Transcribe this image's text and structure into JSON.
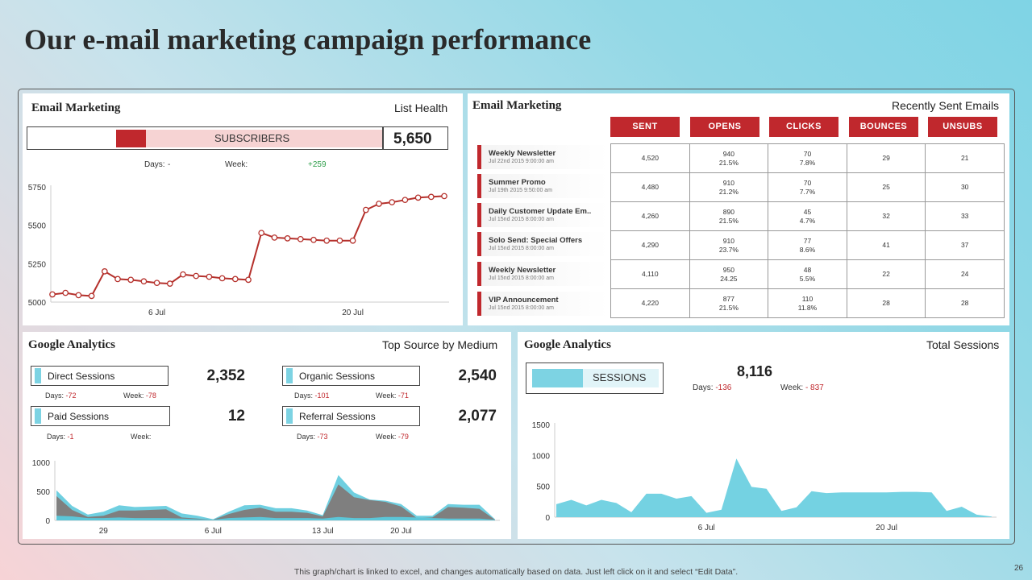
{
  "page": {
    "title": "Our e-mail marketing campaign performance",
    "footer_note": "This graph/chart is linked to excel, and changes automatically based on data. Just left click on it and select “Edit Data”.",
    "page_number": "26"
  },
  "colors": {
    "accent_red": "#c0282d",
    "accent_cyan": "#7dd3e3",
    "gray_area": "#808080"
  },
  "list_health": {
    "title": "Email Marketing",
    "subtitle": "List Health",
    "bar_label": "SUBSCRIBERS",
    "value": "5,650",
    "days_label": "Days:",
    "days_value": "-",
    "week_label": "Week:",
    "week_value": "+259"
  },
  "recent_emails": {
    "title": "Email Marketing",
    "subtitle": "Recently Sent Emails",
    "headers": [
      "SENT",
      "OPENS",
      "CLICKS",
      "BOUNCES",
      "UNSUBS"
    ],
    "rows": [
      {
        "name": "Weekly Newsletter",
        "date": "Jul 22nd 2015 9:00:00 am",
        "sent": "4,520",
        "opens": "940",
        "opens_pct": "21.5%",
        "clicks": "70",
        "clicks_pct": "7.8%",
        "bounces": "29",
        "unsubs": "21"
      },
      {
        "name": "Summer Promo",
        "date": "Jul 19th 2015 9:50:00 am",
        "sent": "4,480",
        "opens": "910",
        "opens_pct": "21.2%",
        "clicks": "70",
        "clicks_pct": "7.7%",
        "bounces": "25",
        "unsubs": "30"
      },
      {
        "name": "Daily Customer Update Em..",
        "date": "Jul 15nd 2015 8:00:00 am",
        "sent": "4,260",
        "opens": "890",
        "opens_pct": "21.5%",
        "clicks": "45",
        "clicks_pct": "4.7%",
        "bounces": "32",
        "unsubs": "33"
      },
      {
        "name": "Solo Send: Special Offers",
        "date": "Jul 15nd 2015 8:00:00 am",
        "sent": "4,290",
        "opens": "910",
        "opens_pct": "23.7%",
        "clicks": "77",
        "clicks_pct": "8.6%",
        "bounces": "41",
        "unsubs": "37"
      },
      {
        "name": "Weekly Newsletter",
        "date": "Jul 15nd 2015 8:00:00 am",
        "sent": "4,110",
        "opens": "950",
        "opens_pct": "24.25",
        "clicks": "48",
        "clicks_pct": "5.5%",
        "bounces": "22",
        "unsubs": "24"
      },
      {
        "name": "VIP Announcement",
        "date": "Jul 15nd 2015 8:00:00 am",
        "sent": "4,220",
        "opens": "877",
        "opens_pct": "21.5%",
        "clicks": "110",
        "clicks_pct": "11.8%",
        "bounces": "28",
        "unsubs": "28"
      }
    ]
  },
  "top_source": {
    "title": "Google Analytics",
    "subtitle": "Top Source by Medium",
    "items": [
      {
        "label": "Direct Sessions",
        "value": "2,352",
        "days_label": "Days:",
        "days_value": "-72",
        "week_label": "Week:",
        "week_value": "-78"
      },
      {
        "label": "Organic Sessions",
        "value": "2,540",
        "days_label": "Days:",
        "days_value": "-101",
        "week_label": "Week:",
        "week_value": "-71"
      },
      {
        "label": "Paid Sessions",
        "value": "12",
        "days_label": "Days:",
        "days_value": "-1",
        "week_label": "Week:",
        "week_value": ""
      },
      {
        "label": "Referral Sessions",
        "value": "2,077",
        "days_label": "Days:",
        "days_value": "-73",
        "week_label": "Week:",
        "week_value": "-79"
      }
    ]
  },
  "total_sessions": {
    "title": "Google Analytics",
    "subtitle": "Total Sessions",
    "bar_label": "SESSIONS",
    "value": "8,116",
    "days_label": "Days:",
    "days_value": "-136",
    "week_label": "Week:",
    "week_value": "- 837"
  },
  "chart_data": [
    {
      "id": "subscribers",
      "type": "line",
      "title": "",
      "xlabel": "",
      "ylabel": "",
      "ylim": [
        5000,
        5750
      ],
      "yticks": [
        5000,
        5250,
        5500,
        5750
      ],
      "x_tick_labels": [
        {
          "index": 8,
          "label": "6 Jul"
        },
        {
          "index": 23,
          "label": "20 Jul"
        }
      ],
      "series": [
        {
          "name": "Subscribers",
          "values": [
            5050,
            5060,
            5045,
            5040,
            5200,
            5150,
            5145,
            5135,
            5125,
            5120,
            5180,
            5170,
            5165,
            5155,
            5150,
            5145,
            5450,
            5420,
            5415,
            5410,
            5405,
            5400,
            5400,
            5400,
            5600,
            5640,
            5650,
            5665,
            5680,
            5685,
            5690
          ]
        }
      ]
    },
    {
      "id": "top_source_area",
      "type": "area",
      "title": "",
      "xlabel": "",
      "ylabel": "",
      "ylim": [
        0,
        1000
      ],
      "yticks": [
        0,
        500,
        1000
      ],
      "x_tick_labels": [
        {
          "index": 3,
          "label": "29"
        },
        {
          "index": 10,
          "label": "6 Jul"
        },
        {
          "index": 17,
          "label": "13 Jul"
        },
        {
          "index": 22,
          "label": "20 Jul"
        }
      ],
      "series": [
        {
          "name": "Cyan series",
          "values": [
            520,
            250,
            100,
            150,
            260,
            230,
            240,
            250,
            120,
            80,
            20,
            150,
            260,
            270,
            210,
            210,
            170,
            90,
            780,
            480,
            360,
            340,
            280,
            80,
            80,
            280,
            270,
            270,
            20
          ]
        },
        {
          "name": "Gray series",
          "values": [
            420,
            180,
            60,
            80,
            170,
            170,
            180,
            190,
            50,
            30,
            10,
            110,
            180,
            220,
            150,
            150,
            130,
            70,
            620,
            400,
            350,
            320,
            240,
            40,
            50,
            230,
            220,
            200,
            10
          ]
        },
        {
          "name": "Teal series",
          "values": [
            80,
            70,
            40,
            40,
            50,
            40,
            40,
            40,
            30,
            20,
            10,
            40,
            50,
            60,
            40,
            40,
            40,
            30,
            60,
            40,
            40,
            60,
            60,
            50,
            40,
            30,
            30,
            30,
            10
          ]
        }
      ]
    },
    {
      "id": "total_sessions_area",
      "type": "area",
      "title": "",
      "xlabel": "",
      "ylabel": "",
      "ylim": [
        0,
        1500
      ],
      "yticks": [
        0,
        500,
        1000,
        1500
      ],
      "x_tick_labels": [
        {
          "index": 10,
          "label": "6 Jul"
        },
        {
          "index": 22,
          "label": "20 Jul"
        }
      ],
      "series": [
        {
          "name": "Sessions",
          "values": [
            210,
            280,
            190,
            280,
            230,
            80,
            380,
            380,
            300,
            340,
            70,
            120,
            950,
            490,
            460,
            100,
            160,
            420,
            390,
            400,
            400,
            400,
            400,
            410,
            410,
            400,
            100,
            170,
            40,
            10
          ]
        }
      ]
    }
  ]
}
